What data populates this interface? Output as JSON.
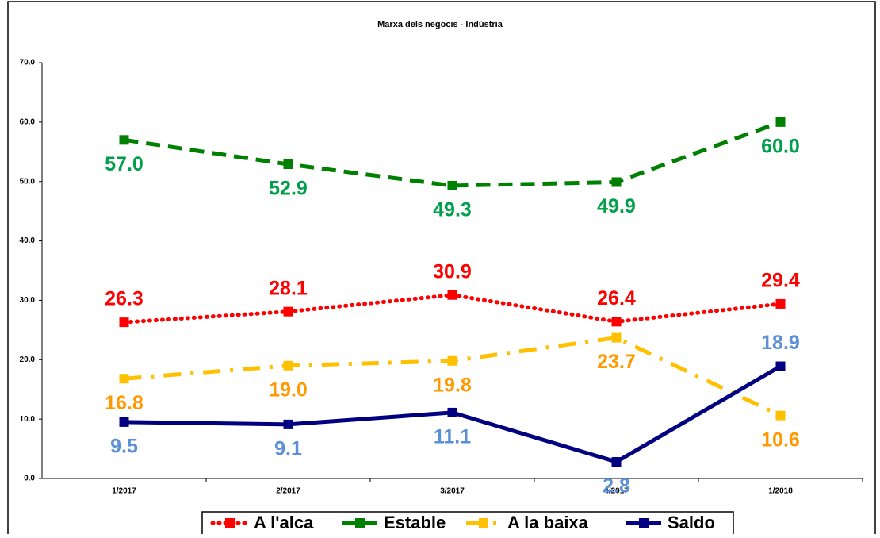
{
  "chart_data": {
    "type": "line",
    "title": "Marxa dels negocis - Indústria",
    "categories": [
      "1/2017",
      "2/2017",
      "3/2017",
      "4/2017",
      "1/2018"
    ],
    "ylim": [
      0,
      70
    ],
    "yticks": [
      {
        "value": 0,
        "label": "0.0"
      },
      {
        "value": 10,
        "label": "10.0"
      },
      {
        "value": 20,
        "label": "20.0"
      },
      {
        "value": 30,
        "label": "30.0"
      },
      {
        "value": 40,
        "label": "40.0"
      },
      {
        "value": 50,
        "label": "50.0"
      },
      {
        "value": 60,
        "label": "60.0"
      },
      {
        "value": 70,
        "label": "70.0"
      }
    ],
    "grid": false,
    "legend": "bottom",
    "series": [
      {
        "name": "A l'alca",
        "color": "#ff0000",
        "label_color": "#ff0000",
        "dash": "dotted",
        "values": [
          26.3,
          28.1,
          30.9,
          26.4,
          29.4
        ],
        "value_labels": [
          "26.3",
          "28.1",
          "30.9",
          "26.4",
          "29.4"
        ]
      },
      {
        "name": "Estable",
        "color": "#008000",
        "label_color": "#00a04a",
        "dash": "dashed",
        "values": [
          57.0,
          52.9,
          49.3,
          49.9,
          60.0
        ],
        "value_labels": [
          "57.0",
          "52.9",
          "49.3",
          "49.9",
          "60.0"
        ]
      },
      {
        "name": "A la baixa",
        "color": "#ffc000",
        "label_color": "#ff9900",
        "dash": "dashdot",
        "values": [
          16.8,
          19.0,
          19.8,
          23.7,
          10.6
        ],
        "value_labels": [
          "16.8",
          "19.0",
          "19.8",
          "23.7",
          "10.6"
        ]
      },
      {
        "name": "Saldo",
        "color": "#000080",
        "label_color": "#5b8fd6",
        "dash": "solid",
        "values": [
          9.5,
          9.1,
          11.1,
          2.8,
          18.9
        ],
        "value_labels": [
          "9.5",
          "9.1",
          "11.1",
          "2.8",
          "18.9"
        ]
      }
    ]
  }
}
